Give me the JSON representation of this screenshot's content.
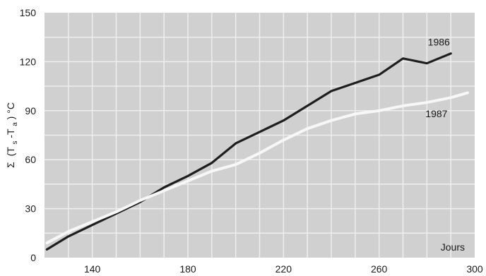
{
  "chart_data": {
    "type": "line",
    "xlabel": "Jours",
    "ylabel_parts": {
      "sigma": "Σ",
      "open": "(T",
      "sub1": "s",
      "minus": "-T",
      "sub2": "a",
      "close": ") °C"
    },
    "xlim": [
      120,
      300
    ],
    "ylim": [
      0,
      150
    ],
    "xticks": [
      140,
      180,
      220,
      260,
      300
    ],
    "yticks": [
      0,
      30,
      60,
      90,
      120,
      150
    ],
    "grid": true,
    "colors": {
      "plot_background": "#d0d0d0",
      "grid": "#eeeeee",
      "series_1986": "#1e1e1e",
      "series_1987": "#f7f7f7"
    },
    "series": [
      {
        "name": "1986",
        "x": [
          121,
          130,
          140,
          150,
          160,
          170,
          180,
          190,
          200,
          210,
          220,
          230,
          240,
          250,
          260,
          270,
          280,
          290
        ],
        "y": [
          5,
          13,
          20,
          27,
          34,
          43,
          50,
          58,
          70,
          77,
          84,
          93,
          102,
          107,
          112,
          122,
          119,
          125
        ]
      },
      {
        "name": "1987",
        "x": [
          121,
          130,
          140,
          150,
          160,
          170,
          180,
          190,
          200,
          210,
          220,
          230,
          240,
          250,
          260,
          270,
          280,
          290,
          297
        ],
        "y": [
          9,
          16,
          22,
          28,
          35,
          41,
          47,
          53,
          57,
          64,
          72,
          79,
          84,
          88,
          90,
          93,
          95,
          98,
          101
        ]
      }
    ]
  }
}
